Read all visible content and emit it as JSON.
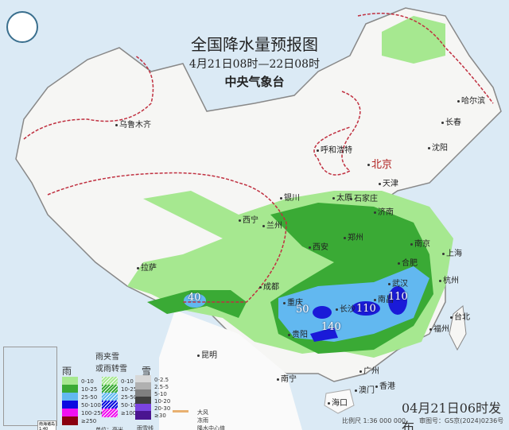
{
  "header": {
    "title": "全国降水量预报图",
    "period": "4月21日08时—22日08时",
    "issuer": "中央气象台"
  },
  "logo_icon": "cma-logo",
  "cities": [
    {
      "name": "乌鲁木齐"
    },
    {
      "name": "哈尔滨"
    },
    {
      "name": "长春"
    },
    {
      "name": "沈阳"
    },
    {
      "name": "呼和浩特"
    },
    {
      "name": "北京"
    },
    {
      "name": "天津"
    },
    {
      "name": "银川"
    },
    {
      "name": "太原"
    },
    {
      "name": "石家庄"
    },
    {
      "name": "西宁"
    },
    {
      "name": "兰州"
    },
    {
      "name": "济南"
    },
    {
      "name": "郑州"
    },
    {
      "name": "西安"
    },
    {
      "name": "合肥"
    },
    {
      "name": "南京"
    },
    {
      "name": "上海"
    },
    {
      "name": "杭州"
    },
    {
      "name": "武汉"
    },
    {
      "name": "成都"
    },
    {
      "name": "重庆"
    },
    {
      "name": "长沙"
    },
    {
      "name": "南昌"
    },
    {
      "name": "拉萨"
    },
    {
      "name": "贵阳"
    },
    {
      "name": "福州"
    },
    {
      "name": "台北"
    },
    {
      "name": "昆明"
    },
    {
      "name": "南宁"
    },
    {
      "name": "广州"
    },
    {
      "name": "澳门"
    },
    {
      "name": "香港"
    },
    {
      "name": "海口"
    }
  ],
  "precip_centers": [
    {
      "value": "40"
    },
    {
      "value": "50"
    },
    {
      "value": "110"
    },
    {
      "value": "110"
    },
    {
      "value": "140"
    }
  ],
  "legend": {
    "rain_title": "雨",
    "mixed_title": "雨夹雪\n或雨转雪",
    "snow_title": "雪",
    "rain": [
      {
        "label": "0-10",
        "color": "#a6e890"
      },
      {
        "label": "10-25",
        "color": "#3aaa35"
      },
      {
        "label": "25-50",
        "color": "#62b8f0"
      },
      {
        "label": "50-100",
        "color": "#0a0ae0"
      },
      {
        "label": "100-250",
        "color": "#f010f0"
      },
      {
        "label": "≥250",
        "color": "#8a0010"
      }
    ],
    "mixed": [
      {
        "label": "0-10",
        "color": "#a6e890"
      },
      {
        "label": "10-25",
        "color": "#3aaa35"
      },
      {
        "label": "25-50",
        "color": "#62b8f0"
      },
      {
        "label": "50-100",
        "color": "#0a0ae0"
      },
      {
        "label": "≥100",
        "color": "#f010f0"
      }
    ],
    "snow": [
      {
        "label": "0-2.5",
        "color": "#d8d8d8"
      },
      {
        "label": "2.5-5",
        "color": "#b0b0b0"
      },
      {
        "label": "5-10",
        "color": "#808080"
      },
      {
        "label": "10-20",
        "color": "#404040"
      },
      {
        "label": "20-30",
        "color": "#7a44e0"
      },
      {
        "label": "≥30",
        "color": "#4a1490"
      }
    ],
    "unit": "单位：毫米",
    "line_orange": "大风",
    "dots": "冻雨",
    "rain_snow_line": "雨雪线",
    "center_mark": "降水中心值"
  },
  "footer": {
    "issued": "04月21日06时发布",
    "scale": "比例尺 1:36 000 000",
    "review": "审图号：GS京(2024)0236号"
  },
  "inset": {
    "label": "南海诸岛\n1:40 000 000"
  }
}
